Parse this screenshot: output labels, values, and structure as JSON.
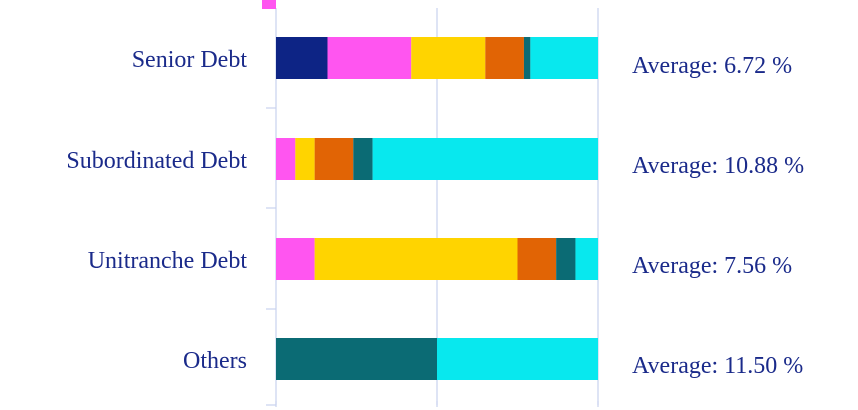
{
  "chart_data": {
    "type": "bar",
    "orientation": "horizontal",
    "stacked": true,
    "percent_stacked": true,
    "categories": [
      "Senior Debt",
      "Subordinated Debt",
      "Unitranche Debt",
      "Others"
    ],
    "series": [
      {
        "color": "#0d2485",
        "values": [
          16,
          0,
          0,
          0
        ]
      },
      {
        "color": "#ff55f0",
        "values": [
          26,
          6,
          12,
          0
        ]
      },
      {
        "color": "#ffd400",
        "values": [
          23,
          6,
          63,
          0
        ]
      },
      {
        "color": "#e16405",
        "values": [
          12,
          12,
          12,
          0
        ]
      },
      {
        "color": "#0b6b74",
        "values": [
          2,
          6,
          6,
          50
        ]
      },
      {
        "color": "#08e8ee",
        "values": [
          21,
          70,
          7,
          50
        ]
      }
    ],
    "annotations": [
      {
        "text": "Average: 6.72 %"
      },
      {
        "text": "Average: 10.88 %"
      },
      {
        "text": "Average: 7.56 %"
      },
      {
        "text": "Average: 11.50 %"
      }
    ],
    "xlim": [
      0,
      100
    ],
    "grid": true,
    "legend": "none"
  }
}
